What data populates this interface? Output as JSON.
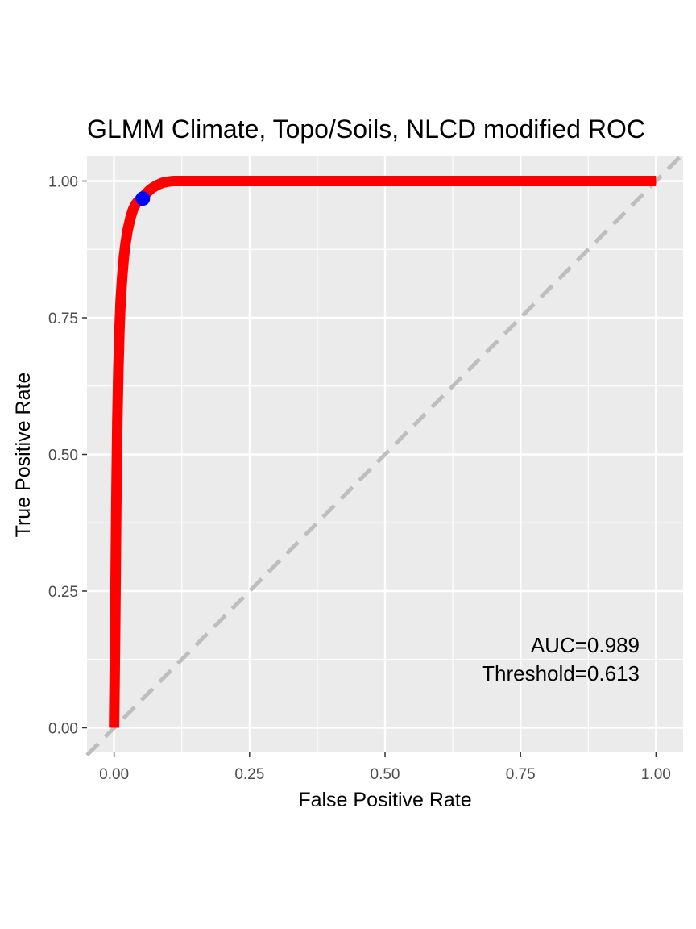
{
  "chart_data": {
    "type": "line",
    "title": "GLMM Climate, Topo/Soils, NLCD modified ROC",
    "xlabel": "False Positive Rate",
    "ylabel": "True Positive Rate",
    "xlim": [
      -0.05,
      1.05
    ],
    "ylim": [
      -0.045,
      1.045
    ],
    "x_ticks": [
      0.0,
      0.25,
      0.5,
      0.75,
      1.0
    ],
    "x_tick_labels": [
      "0.00",
      "0.25",
      "0.50",
      "0.75",
      "1.00"
    ],
    "y_ticks": [
      0.0,
      0.25,
      0.5,
      0.75,
      1.0
    ],
    "y_tick_labels": [
      "0.00",
      "0.25",
      "0.50",
      "0.75",
      "1.00"
    ],
    "grid": true,
    "series": [
      {
        "x": [
          0,
          0.002,
          0.004,
          0.006,
          0.008,
          0.01,
          0.012,
          0.015,
          0.018,
          0.021,
          0.025,
          0.03,
          0.035,
          0.04,
          0.045,
          0.05,
          0.055,
          0.06,
          0.065,
          0.07,
          0.08,
          0.09,
          0.1,
          0.11,
          0.12,
          0.15,
          0.2,
          0.3,
          0.4,
          0.5,
          0.6,
          0.7,
          0.8,
          0.9,
          1.0
        ],
        "y": [
          0,
          0.18,
          0.4,
          0.56,
          0.66,
          0.73,
          0.78,
          0.825,
          0.86,
          0.885,
          0.91,
          0.932,
          0.948,
          0.958,
          0.964,
          0.968,
          0.973,
          0.978,
          0.983,
          0.987,
          0.993,
          0.997,
          0.999,
          1.0,
          1.0,
          1.0,
          1.0,
          1.0,
          1.0,
          1.0,
          1.0,
          1.0,
          1.0,
          1.0,
          1.0
        ],
        "color": "#ff0000"
      }
    ],
    "optimal_point": {
      "x": 0.053,
      "y": 0.968,
      "color": "#0000ff"
    },
    "reference_line": {
      "x": [
        -0.05,
        1.05
      ],
      "y": [
        -0.05,
        1.05
      ],
      "color": "#bebebe",
      "style": "dashed"
    },
    "annotations": [
      "AUC=0.989",
      "Threshold=0.613"
    ],
    "panel_background": "#ebebeb",
    "grid_color": "#ffffff"
  }
}
